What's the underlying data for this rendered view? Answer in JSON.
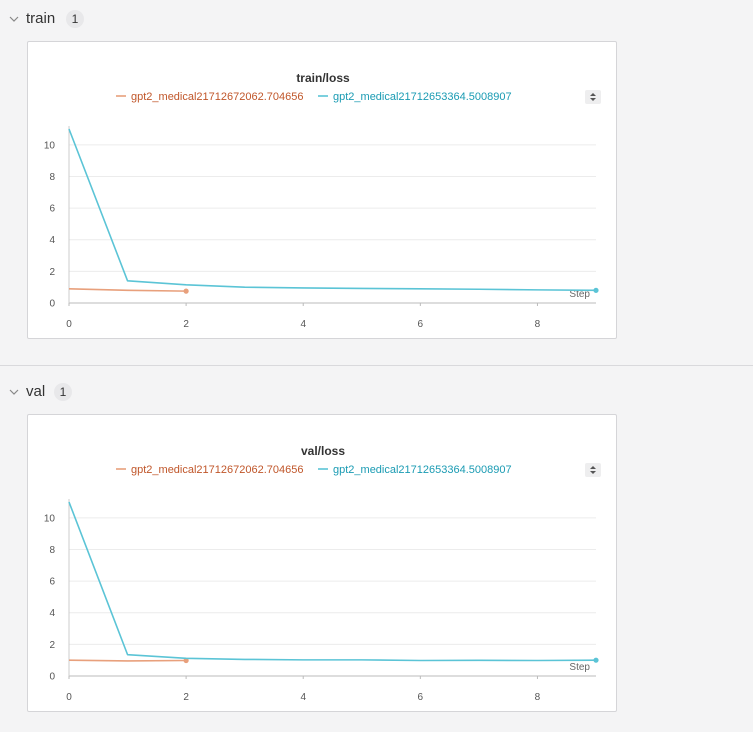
{
  "sections": [
    {
      "name": "train",
      "count": "1"
    },
    {
      "name": "val",
      "count": "1"
    }
  ],
  "chart_data": [
    {
      "type": "line",
      "title": "train/loss",
      "xlabel": "Step",
      "ylabel": "",
      "xlim": [
        0,
        9
      ],
      "ylim": [
        0,
        11
      ],
      "xticks": [
        "0",
        "2",
        "4",
        "6",
        "8"
      ],
      "yticks": [
        "0",
        "2",
        "4",
        "6",
        "8",
        "10"
      ],
      "grid": true,
      "legend_position": "top",
      "series": [
        {
          "name": "gpt2_medical21712672062.704656",
          "color": "#e8a07c",
          "label_color": "#c0562a",
          "x": [
            0,
            1,
            2
          ],
          "y": [
            0.9,
            0.8,
            0.75
          ]
        },
        {
          "name": "gpt2_medical21712653364.5008907",
          "color": "#5bc4d6",
          "label_color": "#1a9bb3",
          "x": [
            0,
            1,
            2,
            3,
            4,
            5,
            6,
            7,
            8,
            9
          ],
          "y": [
            11.0,
            1.4,
            1.15,
            1.0,
            0.95,
            0.92,
            0.9,
            0.87,
            0.83,
            0.8
          ]
        }
      ]
    },
    {
      "type": "line",
      "title": "val/loss",
      "xlabel": "Step",
      "ylabel": "",
      "xlim": [
        0,
        9
      ],
      "ylim": [
        0,
        11
      ],
      "xticks": [
        "0",
        "2",
        "4",
        "6",
        "8"
      ],
      "yticks": [
        "0",
        "2",
        "4",
        "6",
        "8",
        "10"
      ],
      "grid": true,
      "legend_position": "top",
      "series": [
        {
          "name": "gpt2_medical21712672062.704656",
          "color": "#e8a07c",
          "label_color": "#c0562a",
          "x": [
            0,
            1,
            2
          ],
          "y": [
            1.0,
            0.95,
            0.98
          ]
        },
        {
          "name": "gpt2_medical21712653364.5008907",
          "color": "#5bc4d6",
          "label_color": "#1a9bb3",
          "x": [
            0,
            1,
            2,
            3,
            4,
            5,
            6,
            7,
            8,
            9
          ],
          "y": [
            11.0,
            1.35,
            1.12,
            1.05,
            1.02,
            1.02,
            0.98,
            0.99,
            0.98,
            1.0
          ]
        }
      ]
    }
  ]
}
